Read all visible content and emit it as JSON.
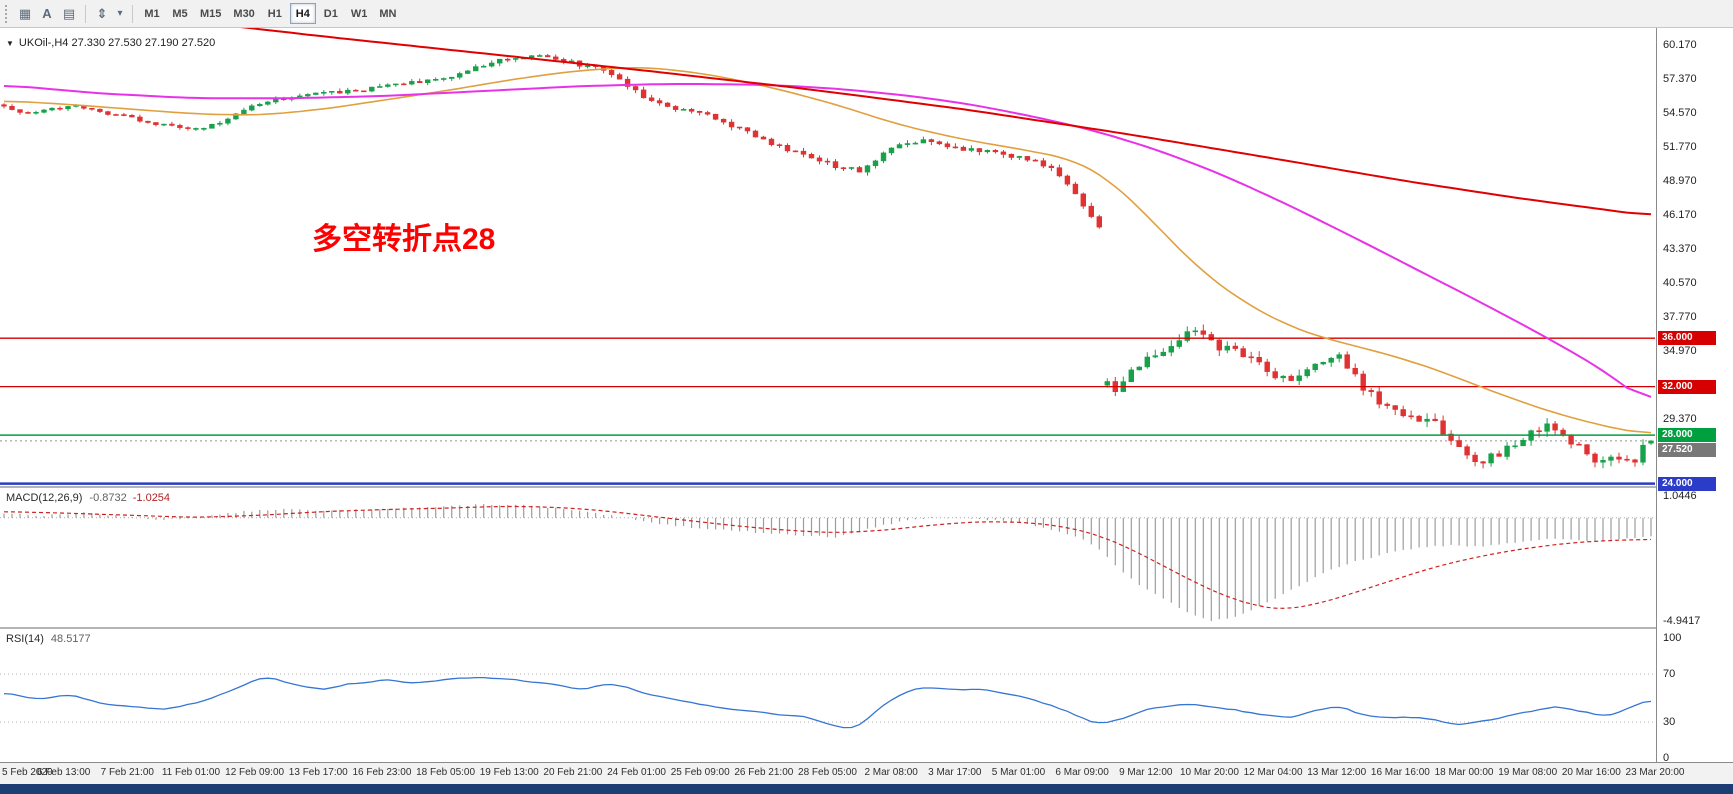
{
  "toolbar": {
    "icons": [
      {
        "name": "grid-icon",
        "glyph": "▦"
      },
      {
        "name": "text-tool-icon",
        "glyph": "A"
      },
      {
        "name": "objects-list-icon",
        "glyph": "▤"
      },
      {
        "name": "scale-icon",
        "glyph": "⇕"
      },
      {
        "name": "dropdown-chevron-icon",
        "glyph": "▾"
      }
    ],
    "timeframes": [
      {
        "label": "M1",
        "active": false
      },
      {
        "label": "M5",
        "active": false
      },
      {
        "label": "M15",
        "active": false
      },
      {
        "label": "M30",
        "active": false
      },
      {
        "label": "H1",
        "active": false
      },
      {
        "label": "H4",
        "active": true
      },
      {
        "label": "D1",
        "active": false
      },
      {
        "label": "W1",
        "active": false
      },
      {
        "label": "MN",
        "active": false
      }
    ]
  },
  "chart": {
    "collapse_glyph": "▼",
    "header_text": "UKOil-,H4 27.330 27.530 27.190 27.520",
    "annotation": {
      "text": "多空转折点28",
      "color": "#ff0000"
    },
    "price_tag": {
      "label": "27.520",
      "color": "#787878"
    }
  },
  "macd": {
    "label": "MACD(12,26,9)",
    "value_main": "-0.8732",
    "value_signal": "-1.0254",
    "scale_max_label": "1.0446",
    "scale_min_label": "-4.9417"
  },
  "rsi": {
    "label": "RSI(14)",
    "value": "48.5177",
    "level_labels": [
      "100",
      "70",
      "30",
      "0"
    ]
  },
  "time_axis": {
    "labels": [
      "5 Feb 2020",
      "6 Feb 13:00",
      "7 Feb 21:00",
      "11 Feb 01:00",
      "12 Feb 09:00",
      "13 Feb 17:00",
      "16 Feb 23:00",
      "18 Feb 05:00",
      "19 Feb 13:00",
      "20 Feb 21:00",
      "24 Feb 01:00",
      "25 Feb 09:00",
      "26 Feb 21:00",
      "28 Feb 05:00",
      "2 Mar 08:00",
      "3 Mar 17:00",
      "5 Mar 01:00",
      "6 Mar 09:00",
      "9 Mar 12:00",
      "10 Mar 20:00",
      "12 Mar 04:00",
      "13 Mar 12:00",
      "16 Mar 16:00",
      "18 Mar 00:00",
      "19 Mar 08:00",
      "20 Mar 16:00",
      "23 Mar 20:00"
    ]
  },
  "chart_data": {
    "type": "candlestick",
    "symbol": "UKOil-",
    "timeframe": "H4",
    "title": "UKOil-,H4",
    "ohlc_display": {
      "open": 27.33,
      "high": 27.53,
      "low": 27.19,
      "close": 27.52
    },
    "bars": 207,
    "colors": {
      "up": "#17a24a",
      "down": "#e03232"
    },
    "price_axis": {
      "min": 23.8,
      "max": 61.6,
      "tick_step": 2.8,
      "ticks": [
        "60.170",
        "57.370",
        "54.570",
        "51.770",
        "48.970",
        "46.170",
        "43.370",
        "40.570",
        "37.770",
        "34.970",
        "32.170",
        "29.370",
        "26.570",
        "23.770"
      ]
    },
    "bid_price": 27.52,
    "last_bar_ohlc": [
      27.33,
      27.53,
      27.19,
      27.52
    ],
    "volatility_regimes": [
      [
        0,
        0.32
      ],
      [
        100,
        0.5
      ],
      [
        137,
        0.5
      ],
      [
        138,
        0.9
      ],
      [
        168,
        0.85
      ],
      [
        206,
        0.85
      ]
    ],
    "close_path_anchors": [
      [
        0,
        55.2
      ],
      [
        3,
        54.5
      ],
      [
        6,
        54.9
      ],
      [
        9,
        55.3
      ],
      [
        12,
        54.6
      ],
      [
        15,
        54.3
      ],
      [
        18,
        53.8
      ],
      [
        21,
        53.5
      ],
      [
        24,
        53.2
      ],
      [
        27,
        53.8
      ],
      [
        30,
        54.9
      ],
      [
        33,
        55.6
      ],
      [
        36,
        55.9
      ],
      [
        40,
        56.2
      ],
      [
        44,
        56.4
      ],
      [
        48,
        56.9
      ],
      [
        52,
        57.2
      ],
      [
        56,
        57.6
      ],
      [
        60,
        58.5
      ],
      [
        63,
        59.1
      ],
      [
        66,
        59.3
      ],
      [
        69,
        59.0
      ],
      [
        72,
        58.6
      ],
      [
        75,
        58.2
      ],
      [
        78,
        56.8
      ],
      [
        81,
        55.6
      ],
      [
        84,
        54.9
      ],
      [
        88,
        54.4
      ],
      [
        92,
        53.3
      ],
      [
        96,
        52.0
      ],
      [
        100,
        51.2
      ],
      [
        104,
        50.2
      ],
      [
        107,
        49.8
      ],
      [
        110,
        51.3
      ],
      [
        113,
        52.2
      ],
      [
        116,
        52.3
      ],
      [
        120,
        51.6
      ],
      [
        124,
        51.3
      ],
      [
        128,
        50.7
      ],
      [
        131,
        50.2
      ],
      [
        133,
        48.8
      ],
      [
        135,
        47.0
      ],
      [
        137,
        45.3
      ],
      [
        138,
        32.3
      ],
      [
        139,
        31.7
      ],
      [
        141,
        33.6
      ],
      [
        144,
        34.5
      ],
      [
        147,
        36.1
      ],
      [
        149,
        36.5
      ],
      [
        152,
        35.3
      ],
      [
        155,
        34.7
      ],
      [
        158,
        33.3
      ],
      [
        161,
        32.3
      ],
      [
        164,
        33.8
      ],
      [
        167,
        34.8
      ],
      [
        170,
        31.8
      ],
      [
        173,
        30.3
      ],
      [
        176,
        29.6
      ],
      [
        179,
        29.1
      ],
      [
        181,
        27.6
      ],
      [
        184,
        25.7
      ],
      [
        187,
        26.4
      ],
      [
        190,
        27.8
      ],
      [
        193,
        28.9
      ],
      [
        196,
        27.5
      ],
      [
        199,
        26.0
      ],
      [
        202,
        26.3
      ],
      [
        204,
        25.8
      ],
      [
        205,
        27.3
      ],
      [
        206,
        27.4
      ]
    ],
    "moving_averages": [
      {
        "name": "ma-fast-orange",
        "color": "#e0a040",
        "width": 1.6,
        "anchors": [
          [
            0,
            55.6
          ],
          [
            8,
            55.3
          ],
          [
            16,
            54.9
          ],
          [
            24,
            54.5
          ],
          [
            32,
            54.4
          ],
          [
            40,
            54.9
          ],
          [
            48,
            55.7
          ],
          [
            56,
            56.5
          ],
          [
            64,
            57.4
          ],
          [
            72,
            58.1
          ],
          [
            80,
            58.4
          ],
          [
            88,
            57.8
          ],
          [
            96,
            56.7
          ],
          [
            104,
            55.3
          ],
          [
            112,
            53.6
          ],
          [
            120,
            52.4
          ],
          [
            128,
            51.5
          ],
          [
            134,
            50.7
          ],
          [
            138,
            49.2
          ],
          [
            142,
            46.8
          ],
          [
            146,
            44.0
          ],
          [
            150,
            41.4
          ],
          [
            155,
            39.0
          ],
          [
            160,
            37.2
          ],
          [
            165,
            36.0
          ],
          [
            170,
            35.2
          ],
          [
            175,
            34.3
          ],
          [
            180,
            33.2
          ],
          [
            185,
            31.9
          ],
          [
            190,
            30.7
          ],
          [
            195,
            29.6
          ],
          [
            200,
            28.8
          ],
          [
            203,
            28.3
          ],
          [
            206,
            28.1
          ]
        ]
      },
      {
        "name": "ma-medium-magenta",
        "color": "#e832e8",
        "width": 2,
        "anchors": [
          [
            0,
            56.9
          ],
          [
            12,
            56.2
          ],
          [
            24,
            55.8
          ],
          [
            36,
            55.8
          ],
          [
            48,
            56.0
          ],
          [
            60,
            56.4
          ],
          [
            72,
            56.8
          ],
          [
            84,
            57.0
          ],
          [
            96,
            56.9
          ],
          [
            104,
            56.6
          ],
          [
            112,
            56.1
          ],
          [
            120,
            55.4
          ],
          [
            128,
            54.4
          ],
          [
            136,
            53.2
          ],
          [
            144,
            51.6
          ],
          [
            152,
            49.6
          ],
          [
            160,
            47.2
          ],
          [
            168,
            44.6
          ],
          [
            176,
            41.9
          ],
          [
            184,
            39.2
          ],
          [
            192,
            36.4
          ],
          [
            200,
            33.4
          ],
          [
            206,
            30.4
          ]
        ]
      },
      {
        "name": "ma-slow-red",
        "color": "#e00000",
        "width": 2,
        "anchors": [
          [
            0,
            64.0
          ],
          [
            20,
            62.4
          ],
          [
            40,
            60.9
          ],
          [
            60,
            59.5
          ],
          [
            80,
            58.1
          ],
          [
            100,
            56.6
          ],
          [
            120,
            54.9
          ],
          [
            140,
            52.9
          ],
          [
            160,
            50.7
          ],
          [
            175,
            49.0
          ],
          [
            190,
            47.5
          ],
          [
            206,
            46.1
          ]
        ]
      }
    ],
    "horizontal_lines": [
      {
        "price": 36.0,
        "label": "36.000",
        "color": "#d60000",
        "width": 1.3
      },
      {
        "price": 32.0,
        "label": "32.000",
        "color": "#d60000",
        "width": 1.3
      },
      {
        "price": 28.0,
        "label": "28.000",
        "color": "#00a040",
        "width": 1.5
      },
      {
        "price": 24.0,
        "label": "24.000",
        "color": "#2b3cc8",
        "width": 2.5
      }
    ],
    "macd": {
      "params": "12,26,9",
      "main": -0.8732,
      "signal": -1.0254,
      "max": 1.0446,
      "min": -4.9417,
      "hist_color": "#9c9c9c",
      "signal_color": "#cc2222",
      "hist_anchors": [
        [
          0,
          0.22
        ],
        [
          5,
          0.1
        ],
        [
          10,
          0.25
        ],
        [
          15,
          0.05
        ],
        [
          20,
          -0.1
        ],
        [
          25,
          0.05
        ],
        [
          30,
          0.3
        ],
        [
          35,
          0.42
        ],
        [
          40,
          0.32
        ],
        [
          45,
          0.4
        ],
        [
          50,
          0.48
        ],
        [
          55,
          0.52
        ],
        [
          60,
          0.65
        ],
        [
          65,
          0.6
        ],
        [
          70,
          0.42
        ],
        [
          75,
          0.15
        ],
        [
          80,
          -0.18
        ],
        [
          85,
          -0.42
        ],
        [
          90,
          -0.58
        ],
        [
          95,
          -0.72
        ],
        [
          100,
          -0.85
        ],
        [
          104,
          -0.92
        ],
        [
          108,
          -0.55
        ],
        [
          112,
          -0.18
        ],
        [
          116,
          0.02
        ],
        [
          120,
          -0.02
        ],
        [
          124,
          -0.12
        ],
        [
          128,
          -0.28
        ],
        [
          132,
          -0.65
        ],
        [
          135,
          -1.05
        ],
        [
          137,
          -1.5
        ],
        [
          139,
          -2.3
        ],
        [
          142,
          -3.2
        ],
        [
          145,
          -3.9
        ],
        [
          148,
          -4.5
        ],
        [
          151,
          -4.94
        ],
        [
          154,
          -4.72
        ],
        [
          157,
          -4.25
        ],
        [
          160,
          -3.65
        ],
        [
          163,
          -3.05
        ],
        [
          166,
          -2.5
        ],
        [
          169,
          -2.1
        ],
        [
          172,
          -1.8
        ],
        [
          175,
          -1.55
        ],
        [
          178,
          -1.38
        ],
        [
          181,
          -1.32
        ],
        [
          184,
          -1.38
        ],
        [
          187,
          -1.3
        ],
        [
          190,
          -1.12
        ],
        [
          193,
          -0.98
        ],
        [
          196,
          -1.05
        ],
        [
          199,
          -1.15
        ],
        [
          202,
          -1.05
        ],
        [
          204,
          -0.95
        ],
        [
          206,
          -0.87
        ]
      ],
      "signal_anchors": [
        [
          0,
          0.3
        ],
        [
          8,
          0.22
        ],
        [
          16,
          0.12
        ],
        [
          24,
          0.02
        ],
        [
          32,
          0.12
        ],
        [
          40,
          0.3
        ],
        [
          48,
          0.4
        ],
        [
          56,
          0.47
        ],
        [
          62,
          0.55
        ],
        [
          68,
          0.52
        ],
        [
          74,
          0.38
        ],
        [
          80,
          0.12
        ],
        [
          86,
          -0.15
        ],
        [
          92,
          -0.4
        ],
        [
          98,
          -0.6
        ],
        [
          104,
          -0.72
        ],
        [
          110,
          -0.6
        ],
        [
          116,
          -0.35
        ],
        [
          122,
          -0.18
        ],
        [
          128,
          -0.22
        ],
        [
          133,
          -0.45
        ],
        [
          137,
          -0.85
        ],
        [
          141,
          -1.5
        ],
        [
          145,
          -2.3
        ],
        [
          149,
          -3.1
        ],
        [
          153,
          -3.8
        ],
        [
          157,
          -4.25
        ],
        [
          160,
          -4.4
        ],
        [
          164,
          -4.15
        ],
        [
          168,
          -3.7
        ],
        [
          172,
          -3.2
        ],
        [
          176,
          -2.7
        ],
        [
          180,
          -2.25
        ],
        [
          184,
          -1.9
        ],
        [
          188,
          -1.6
        ],
        [
          192,
          -1.38
        ],
        [
          196,
          -1.2
        ],
        [
          200,
          -1.1
        ],
        [
          203,
          -1.06
        ],
        [
          206,
          -1.03
        ]
      ]
    },
    "rsi": {
      "period": 14,
      "value": 48.5177,
      "color": "#3575d3",
      "levels": [
        70,
        30
      ],
      "anchors": [
        [
          0,
          55
        ],
        [
          4,
          49
        ],
        [
          8,
          53
        ],
        [
          12,
          46
        ],
        [
          16,
          42
        ],
        [
          20,
          40
        ],
        [
          24,
          46
        ],
        [
          28,
          55
        ],
        [
          31,
          64
        ],
        [
          33,
          68
        ],
        [
          36,
          61
        ],
        [
          40,
          57
        ],
        [
          44,
          62
        ],
        [
          48,
          65
        ],
        [
          52,
          62
        ],
        [
          56,
          66
        ],
        [
          60,
          68
        ],
        [
          64,
          65
        ],
        [
          68,
          62
        ],
        [
          72,
          57
        ],
        [
          76,
          62
        ],
        [
          80,
          54
        ],
        [
          84,
          48
        ],
        [
          88,
          44
        ],
        [
          92,
          40
        ],
        [
          96,
          37
        ],
        [
          100,
          34
        ],
        [
          103,
          29
        ],
        [
          106,
          23
        ],
        [
          108,
          33
        ],
        [
          110,
          45
        ],
        [
          113,
          56
        ],
        [
          116,
          59
        ],
        [
          119,
          56
        ],
        [
          122,
          58
        ],
        [
          125,
          54
        ],
        [
          128,
          50
        ],
        [
          131,
          44
        ],
        [
          134,
          36
        ],
        [
          137,
          29
        ],
        [
          140,
          33
        ],
        [
          143,
          40
        ],
        [
          146,
          44
        ],
        [
          149,
          45
        ],
        [
          152,
          42
        ],
        [
          155,
          39
        ],
        [
          158,
          35
        ],
        [
          161,
          33
        ],
        [
          164,
          40
        ],
        [
          167,
          43
        ],
        [
          170,
          36
        ],
        [
          173,
          33
        ],
        [
          176,
          35
        ],
        [
          179,
          31
        ],
        [
          182,
          28
        ],
        [
          185,
          31
        ],
        [
          188,
          35
        ],
        [
          191,
          39
        ],
        [
          194,
          43
        ],
        [
          197,
          39
        ],
        [
          200,
          34
        ],
        [
          202,
          38
        ],
        [
          204,
          44
        ],
        [
          206,
          48.5
        ]
      ]
    }
  }
}
